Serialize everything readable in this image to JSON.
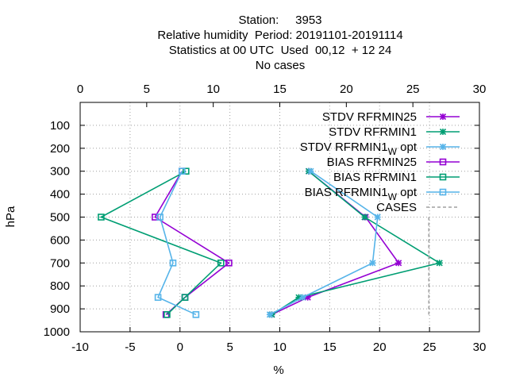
{
  "title_lines": [
    "Station:     3953",
    "Relative humidity  Period: 20191101-20191114",
    "Statistics at 00 UTC  Used  00,12  + 12 24",
    "No cases"
  ],
  "chart_data": {
    "type": "line",
    "xlabel": "%",
    "ylabel": "hPa",
    "xlim": [
      -10,
      30
    ],
    "ylim": [
      1000,
      0
    ],
    "x_ticks": [
      "-10",
      "-5",
      "0",
      "5",
      "10",
      "15",
      "20",
      "25",
      "30"
    ],
    "x2lim": [
      0,
      30
    ],
    "x2_ticks": [
      "0",
      "5",
      "10",
      "15",
      "20",
      "25",
      "30"
    ],
    "y_ticks": [
      "100",
      "200",
      "300",
      "400",
      "500",
      "600",
      "700",
      "800",
      "900",
      "1000"
    ],
    "grid": true,
    "legend_position": "top-right",
    "series": [
      {
        "name": "STDV RFRMIN25",
        "color": "#9400d3",
        "marker": "x-star",
        "points": [
          [
            12.9,
            300
          ],
          [
            18.6,
            500
          ],
          [
            21.9,
            700
          ],
          [
            12.8,
            850
          ],
          [
            9.2,
            925
          ]
        ]
      },
      {
        "name": "STDV RFRMIN1",
        "color": "#009e73",
        "marker": "x-star",
        "points": [
          [
            12.9,
            300
          ],
          [
            18.5,
            500
          ],
          [
            26.0,
            700
          ],
          [
            11.9,
            850
          ],
          [
            9.2,
            925
          ]
        ]
      },
      {
        "name": "STDV RFRMIN1",
        "name_sub": "W",
        "name_suffix": " opt",
        "color": "#56b4e9",
        "marker": "x-star",
        "points": [
          [
            13.1,
            300
          ],
          [
            19.8,
            500
          ],
          [
            19.3,
            700
          ],
          [
            12.3,
            850
          ],
          [
            9.0,
            925
          ]
        ]
      },
      {
        "name": "BIAS RFRMIN25",
        "color": "#9400d3",
        "marker": "square",
        "points": [
          [
            0.2,
            300
          ],
          [
            -2.5,
            500
          ],
          [
            4.9,
            700
          ],
          [
            0.5,
            850
          ],
          [
            -1.4,
            925
          ]
        ]
      },
      {
        "name": "BIAS RFRMIN1",
        "color": "#009e73",
        "marker": "square",
        "points": [
          [
            0.6,
            300
          ],
          [
            -7.9,
            500
          ],
          [
            4.1,
            700
          ],
          [
            0.5,
            850
          ],
          [
            -1.3,
            925
          ]
        ]
      },
      {
        "name": "BIAS RFRMIN1",
        "name_sub": "W",
        "name_suffix": " opt",
        "color": "#56b4e9",
        "marker": "square",
        "points": [
          [
            0.2,
            300
          ],
          [
            -2.0,
            500
          ],
          [
            -0.7,
            700
          ],
          [
            -2.2,
            850
          ],
          [
            1.6,
            925
          ]
        ]
      },
      {
        "name": "CASES",
        "color": "#a0a0a0",
        "marker": "none",
        "dashed": true,
        "axis": "top",
        "points": [
          [
            26.2,
            500
          ],
          [
            26.2,
            925
          ]
        ]
      }
    ]
  }
}
